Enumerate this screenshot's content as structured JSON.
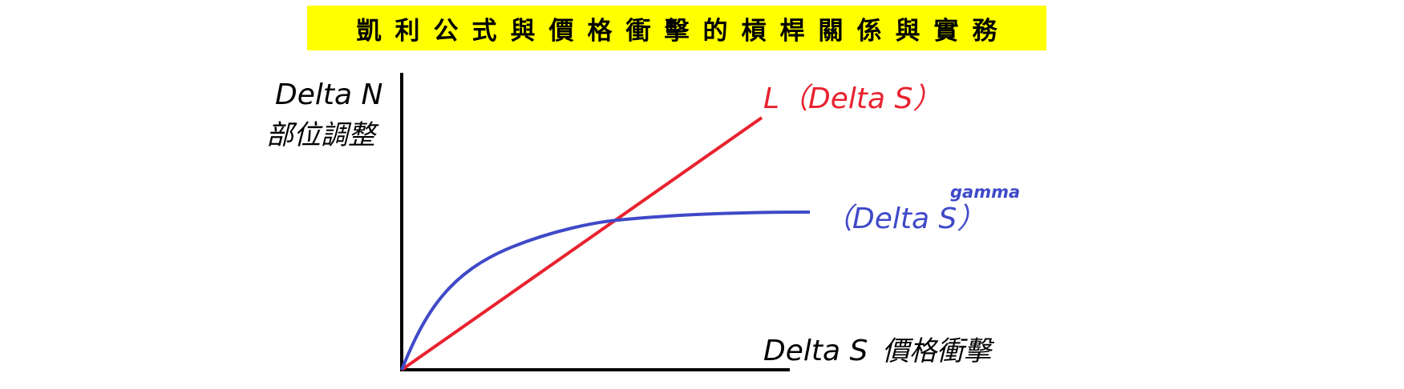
{
  "title": "凱利公式與價格衝擊的槓桿關係與實務",
  "y_axis": {
    "label_line1": "Delta N",
    "label_line2": "部位調整"
  },
  "x_axis": {
    "label": "Delta S",
    "label_cn": "價格衝擊"
  },
  "linear_curve": {
    "label": "L（Delta S）",
    "color": "#e8222f"
  },
  "gamma_curve": {
    "label": "（Delta S）",
    "superscript": "gamma",
    "color": "#3f49c8"
  },
  "colors": {
    "banner": "#ffff00",
    "axis": "#000000"
  }
}
